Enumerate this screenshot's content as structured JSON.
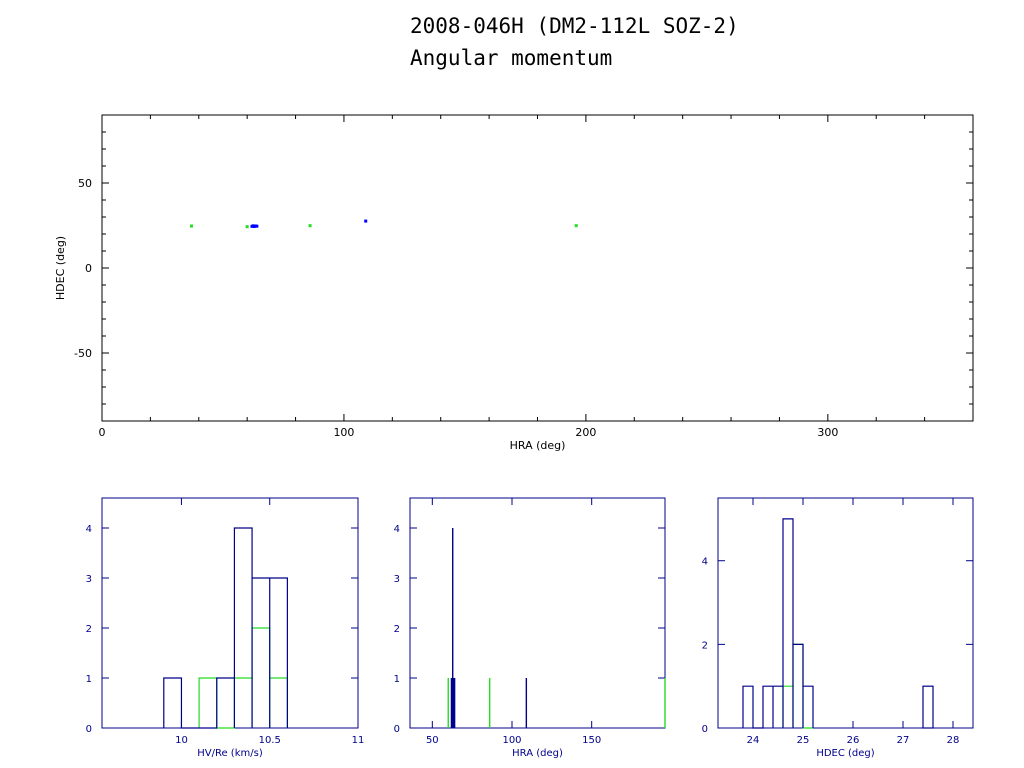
{
  "header": {
    "title_line1": "2008-046H (DM2-112L SOZ-2)",
    "title_line2": "Angular momentum"
  },
  "colors": {
    "axis_main": "#000000",
    "axis_hist": "#00008b",
    "series_blue": "#0000ff",
    "series_blue_hist": "#00008b",
    "series_green": "#22dd22"
  },
  "chart_data": [
    {
      "type": "scatter",
      "xlabel": "HRA (deg)",
      "ylabel": "HDEC (deg)",
      "xlim": [
        0,
        360
      ],
      "ylim": [
        -90,
        90
      ],
      "xticks": [
        0,
        100,
        200,
        300
      ],
      "yticks": [
        -50,
        0,
        50
      ],
      "series": [
        {
          "color": "blue",
          "points": [
            [
              62,
              24.5
            ],
            [
              62.5,
              24.8
            ],
            [
              63,
              24.6
            ],
            [
              63.5,
              24.7
            ],
            [
              64,
              24.6
            ],
            [
              62.8,
              24.4
            ],
            [
              109,
              27.6
            ]
          ]
        },
        {
          "color": "green",
          "points": [
            [
              37,
              24.7
            ],
            [
              60,
              24.3
            ],
            [
              86,
              24.9
            ],
            [
              196,
              24.9
            ]
          ]
        }
      ]
    },
    {
      "type": "histogram",
      "xlabel": "HV/Re (km/s)",
      "ylabel": "",
      "xlim": [
        9.55,
        11.0
      ],
      "ylim": [
        0,
        4.6
      ],
      "xticks": [
        10.0,
        10.5,
        11.0
      ],
      "xtick_labels": [
        "10",
        "10.5",
        "11"
      ],
      "yticks": [
        0,
        1,
        2,
        3,
        4
      ],
      "bin_edges": [
        9.9,
        10.0,
        10.1,
        10.2,
        10.3,
        10.4,
        10.5,
        10.6
      ],
      "series": [
        {
          "color": "blue",
          "counts": [
            1,
            0,
            0,
            1,
            4,
            3,
            3
          ]
        },
        {
          "color": "green",
          "counts": [
            0,
            0,
            1,
            0,
            1,
            2,
            1
          ]
        }
      ]
    },
    {
      "type": "histogram",
      "xlabel": "HRA (deg)",
      "ylabel": "",
      "xlim": [
        36,
        196
      ],
      "ylim": [
        0,
        4.6
      ],
      "xticks": [
        50,
        100,
        150
      ],
      "yticks": [
        0,
        1,
        2,
        3,
        4
      ],
      "series": [
        {
          "color": "blue",
          "bars": [
            [
              62,
              1
            ],
            [
              62.4,
              1
            ],
            [
              62.8,
              4
            ],
            [
              63.2,
              1
            ],
            [
              63.6,
              1
            ],
            [
              64,
              1
            ],
            [
              109,
              1
            ]
          ]
        },
        {
          "color": "green",
          "bars": [
            [
              60,
              1
            ],
            [
              86,
              1
            ],
            [
              196,
              1
            ]
          ]
        }
      ]
    },
    {
      "type": "histogram",
      "xlabel": "HDEC (deg)",
      "ylabel": "",
      "xlim": [
        23.3,
        28.4
      ],
      "ylim": [
        0,
        5.5
      ],
      "xticks": [
        24,
        25,
        26,
        27,
        28
      ],
      "yticks": [
        0,
        2,
        4
      ],
      "bin_edges": [
        23.8,
        24.0,
        24.2,
        24.4,
        24.6,
        24.8,
        25.0,
        25.2
      ],
      "series": [
        {
          "color": "blue",
          "counts": [
            1,
            0,
            1,
            1,
            5,
            2,
            1
          ],
          "extra_bins": [
            [
              27.4,
              27.6,
              1
            ]
          ]
        },
        {
          "color": "green",
          "counts": [
            0,
            0,
            0,
            0,
            1,
            2,
            0
          ]
        }
      ]
    }
  ]
}
